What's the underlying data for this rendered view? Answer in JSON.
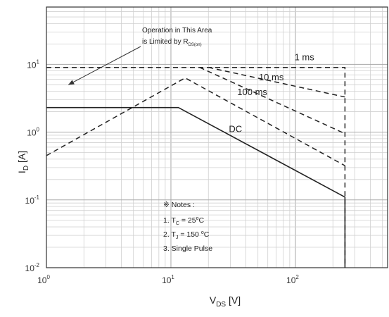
{
  "chart_data": {
    "type": "line",
    "xscale": "log",
    "yscale": "log",
    "xlim": [
      1,
      550
    ],
    "ylim": [
      0.01,
      70
    ],
    "grid": true,
    "xlabel": {
      "main": "V",
      "sub": "DS",
      "unit": " [V]"
    },
    "ylabel": {
      "main": "I",
      "sub": "D",
      "unit": " [A]"
    },
    "xticks": [
      {
        "value": 1,
        "base": "10",
        "exp": "0"
      },
      {
        "value": 10,
        "base": "10",
        "exp": "1"
      },
      {
        "value": 100,
        "base": "10",
        "exp": "2"
      }
    ],
    "yticks": [
      {
        "value": 0.01,
        "base": "10",
        "exp": "-2"
      },
      {
        "value": 0.1,
        "base": "10",
        "exp": "-1"
      },
      {
        "value": 1,
        "base": "10",
        "exp": "0"
      },
      {
        "value": 10,
        "base": "10",
        "exp": "1"
      }
    ],
    "series": [
      {
        "name": "DC",
        "dash": false,
        "points": [
          [
            1,
            2.3
          ],
          [
            11.5,
            2.3
          ],
          [
            250,
            0.11
          ],
          [
            250,
            0.01
          ]
        ],
        "label_at": [
          33,
          1.0
        ]
      },
      {
        "name": "100 ms",
        "dash": true,
        "points": [
          [
            1,
            0.45
          ],
          [
            13,
            6.3
          ],
          [
            250,
            0.32
          ]
        ],
        "label_at": [
          45,
          3.5
        ]
      },
      {
        "name": "10 ms",
        "dash": true,
        "points": [
          [
            1,
            9
          ],
          [
            1,
            9
          ],
          [
            17,
            9
          ],
          [
            250,
            0.95
          ]
        ],
        "label_at": [
          64,
          5.8
        ],
        "from": [
          17,
          9
        ]
      },
      {
        "name": "1 ms",
        "dash": true,
        "points": [
          [
            20,
            9
          ],
          [
            250,
            3.3
          ]
        ],
        "label_at": [
          118,
          11.5
        ]
      },
      {
        "name": "",
        "dash": true,
        "points": [
          [
            1,
            9
          ],
          [
            250,
            9
          ],
          [
            250,
            0.01
          ]
        ]
      }
    ],
    "annotation": {
      "line1": "Operation in This Area",
      "line2": "is Limited by R",
      "sub": "DS(on)",
      "arrow_to": [
        1.5,
        5.0
      ]
    },
    "notes": {
      "title": "※ Notes :",
      "items": [
        {
          "prefix": "1. T",
          "sub": "C",
          "suffix": " = 25",
          "sup": "o",
          "end": "C"
        },
        {
          "prefix": "2. T",
          "sub": "J",
          "suffix": " = 150 ",
          "sup": "o",
          "end": "C"
        },
        {
          "prefix": "3. Single Pulse",
          "sub": "",
          "suffix": "",
          "sup": "",
          "end": ""
        }
      ]
    }
  }
}
